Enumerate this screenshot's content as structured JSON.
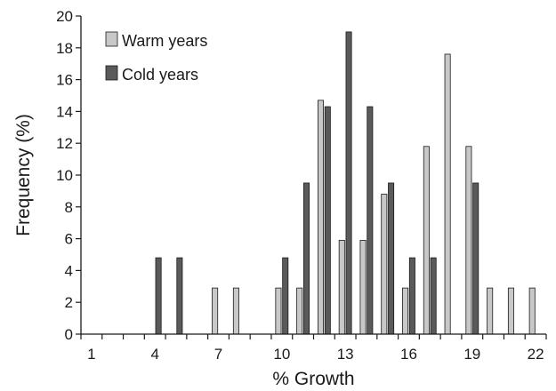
{
  "chart_data": {
    "type": "bar",
    "xlabel": "% Growth",
    "ylabel": "Frequency (%)",
    "x_tick_labels": [
      "1",
      "4",
      "7",
      "10",
      "13",
      "16",
      "19",
      "22"
    ],
    "x_ticks_at": [
      1,
      4,
      7,
      10,
      13,
      16,
      19,
      22
    ],
    "y_ticks": [
      0,
      2,
      4,
      6,
      8,
      10,
      12,
      14,
      16,
      18,
      20
    ],
    "ylim": [
      0,
      20
    ],
    "xlim": [
      0.5,
      22.5
    ],
    "categories": [
      1,
      2,
      3,
      4,
      5,
      6,
      7,
      8,
      9,
      10,
      11,
      12,
      13,
      14,
      15,
      16,
      17,
      18,
      19,
      20,
      21,
      22
    ],
    "series": [
      {
        "name": "Warm years",
        "color": "#c8c8c8",
        "values": [
          0,
          0,
          0,
          0,
          0,
          0,
          2.9,
          2.9,
          0,
          2.9,
          2.9,
          14.7,
          5.9,
          5.9,
          8.8,
          2.9,
          11.8,
          17.6,
          11.8,
          2.9,
          2.9,
          2.9
        ]
      },
      {
        "name": "Cold years",
        "color": "#5a5a5a",
        "values": [
          0,
          0,
          0,
          4.8,
          4.8,
          0,
          0,
          0,
          0,
          4.8,
          9.5,
          14.3,
          19.0,
          14.3,
          9.5,
          4.8,
          4.8,
          0,
          9.5,
          0,
          0,
          0
        ]
      }
    ],
    "grid": false,
    "legend_position": "top-left"
  }
}
